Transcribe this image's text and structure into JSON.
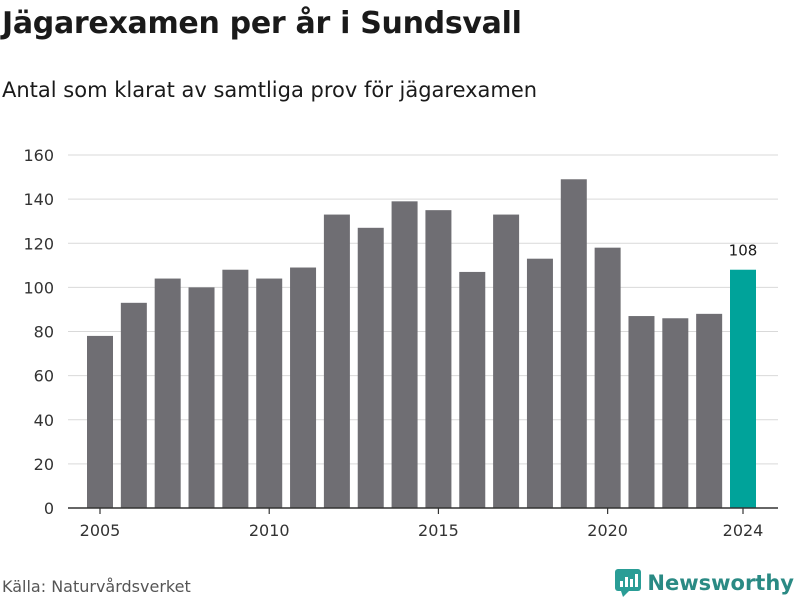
{
  "title": "Jägarexamen per år i Sundsvall",
  "subtitle": "Antal som klarat av samtliga prov för jägarexamen",
  "source": "Källa: Naturvårdsverket",
  "brand": {
    "name": "Newsworthy",
    "icon": "newsworthy-logo-icon",
    "color": "#2a9d96"
  },
  "colors": {
    "bar": "#6f6e73",
    "highlight": "#00a39a",
    "grid": "#d9d9d9",
    "axis": "#333333"
  },
  "chart_data": {
    "type": "bar",
    "title": "Jägarexamen per år i Sundsvall",
    "subtitle": "Antal som klarat av samtliga prov för jägarexamen",
    "xlabel": "",
    "ylabel": "",
    "categories": [
      2005,
      2006,
      2007,
      2008,
      2009,
      2010,
      2011,
      2012,
      2013,
      2014,
      2015,
      2016,
      2017,
      2018,
      2019,
      2020,
      2021,
      2022,
      2023,
      2024
    ],
    "values": [
      78,
      93,
      104,
      100,
      108,
      104,
      109,
      133,
      127,
      139,
      135,
      107,
      133,
      113,
      149,
      118,
      87,
      86,
      88,
      108
    ],
    "ylim": [
      0,
      160
    ],
    "yticks": [
      0,
      20,
      40,
      60,
      80,
      100,
      120,
      140,
      160
    ],
    "xticks": [
      2005,
      2010,
      2015,
      2020,
      2024
    ],
    "grid": true,
    "highlight": {
      "category": 2024,
      "value": 108,
      "label": "108"
    }
  }
}
